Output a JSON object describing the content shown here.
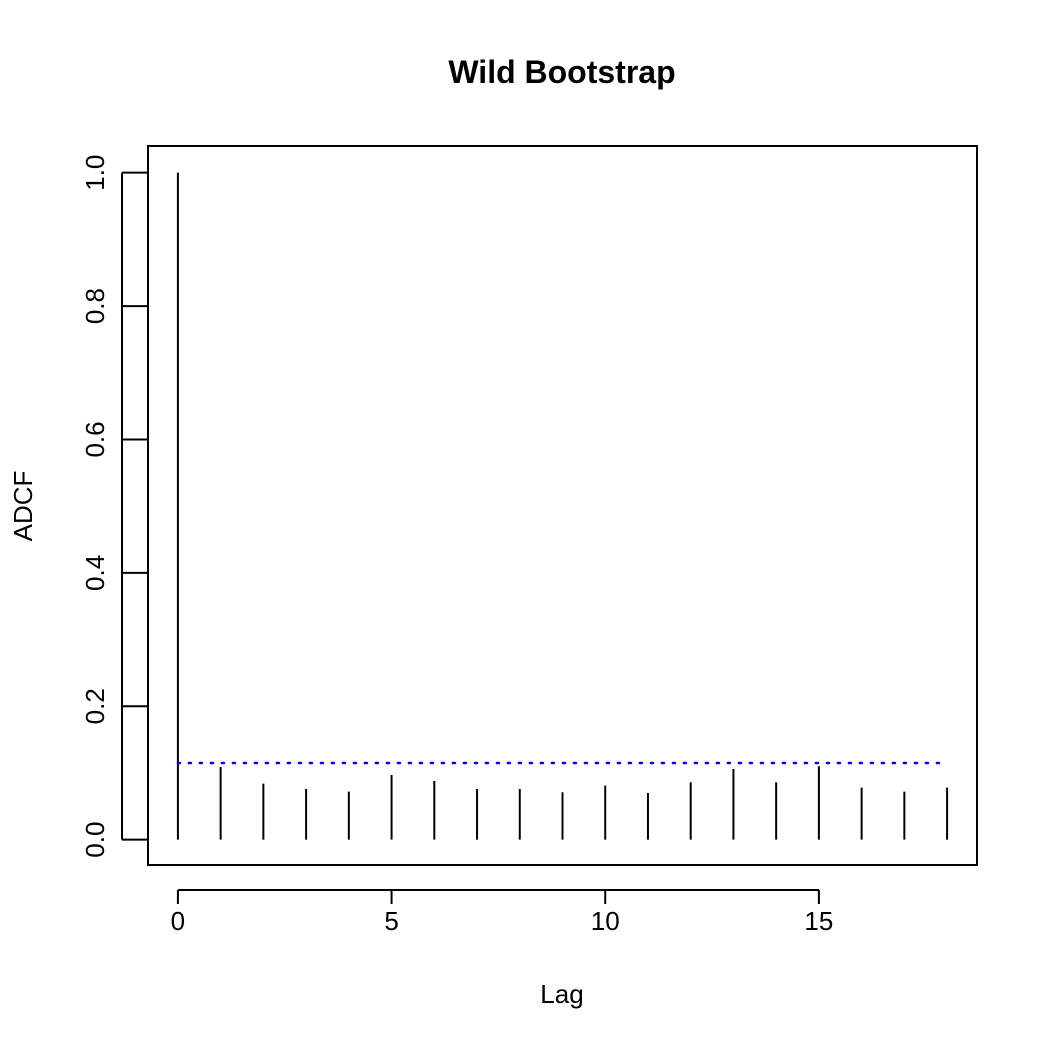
{
  "chart_data": {
    "type": "bar",
    "subtype": "acf-spike",
    "title": "Wild Bootstrap",
    "xlabel": "Lag",
    "ylabel": "ADCF",
    "x": [
      0,
      1,
      2,
      3,
      4,
      5,
      6,
      7,
      8,
      9,
      10,
      11,
      12,
      13,
      14,
      15,
      16,
      17,
      18
    ],
    "values": [
      1.0,
      0.109,
      0.084,
      0.076,
      0.072,
      0.097,
      0.088,
      0.076,
      0.076,
      0.071,
      0.081,
      0.07,
      0.086,
      0.106,
      0.086,
      0.11,
      0.078,
      0.072,
      0.078
    ],
    "threshold": 0.115,
    "xlim": [
      -0.7,
      18.7
    ],
    "ylim": [
      -0.038,
      1.04
    ],
    "xticks": [
      "0",
      "5",
      "10",
      "15"
    ],
    "yticks": [
      "0.0",
      "0.2",
      "0.4",
      "0.6",
      "0.8",
      "1.0"
    ],
    "grid": false,
    "legend": "none",
    "colors": {
      "spike": "#000000",
      "threshold": "#0000ff",
      "axis": "#000000"
    }
  }
}
